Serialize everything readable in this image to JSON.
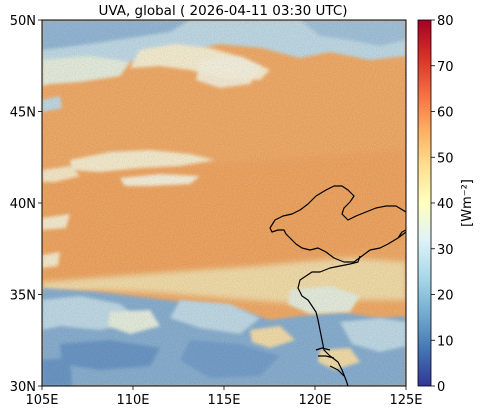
{
  "title": "UVA, global ( 2026-04-11 03:30 UTC)",
  "map": {
    "lon_range": [
      105,
      125
    ],
    "lat_range": [
      30,
      50
    ],
    "x_ticks": [
      {
        "value": 105,
        "label": "105E"
      },
      {
        "value": 110,
        "label": "110E"
      },
      {
        "value": 115,
        "label": "115E"
      },
      {
        "value": 120,
        "label": "120E"
      },
      {
        "value": 125,
        "label": "125E"
      }
    ],
    "y_ticks": [
      {
        "value": 30,
        "label": "30N"
      },
      {
        "value": 35,
        "label": "35N"
      },
      {
        "value": 40,
        "label": "40N"
      },
      {
        "value": 45,
        "label": "45N"
      },
      {
        "value": 50,
        "label": "50N"
      }
    ]
  },
  "colorbar": {
    "label": "[Wm⁻²]",
    "range": [
      0,
      80
    ],
    "ticks": [
      {
        "value": 0,
        "label": "0"
      },
      {
        "value": 10,
        "label": "10"
      },
      {
        "value": 20,
        "label": "20"
      },
      {
        "value": 30,
        "label": "30"
      },
      {
        "value": 40,
        "label": "40"
      },
      {
        "value": 50,
        "label": "50"
      },
      {
        "value": 60,
        "label": "60"
      },
      {
        "value": 70,
        "label": "70"
      },
      {
        "value": 80,
        "label": "80"
      }
    ],
    "colormap": "RdYlBu_r",
    "stops": [
      "#313695",
      "#4575b4",
      "#74add1",
      "#abd9e9",
      "#e0f3f8",
      "#ffffbf",
      "#fee090",
      "#fdae61",
      "#f46d43",
      "#d73027",
      "#a50026"
    ]
  },
  "colors": {
    "field_main": "#f9b26d",
    "field_bright": "#f7a35f",
    "cloud_low": "#8fb6d8",
    "cloud_mid": "#c7e2ee",
    "cloud_pale": "#eef6e6",
    "cloud_white": "#fff6d9",
    "coastline": "#000000"
  }
}
